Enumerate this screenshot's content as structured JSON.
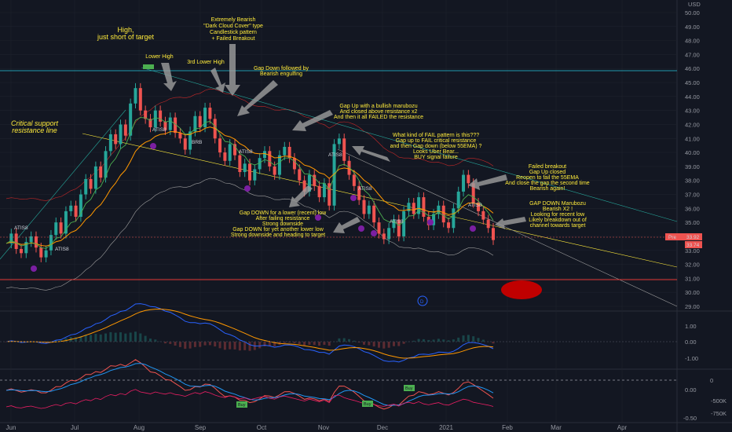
{
  "currency": "USD",
  "price_axis": {
    "ticks": [
      "50.00",
      "49.00",
      "48.00",
      "47.00",
      "46.00",
      "45.00",
      "44.00",
      "43.00",
      "42.00",
      "41.00",
      "40.00",
      "39.00",
      "38.00",
      "37.00",
      "36.00",
      "35.00",
      "34.00",
      "33.00",
      "32.00",
      "31.00",
      "30.00",
      "29.00"
    ],
    "pre_label": "Pre",
    "pre_value": "33.92",
    "last_value": "33.74"
  },
  "macd_axis": {
    "ticks": [
      "1.00",
      "0.00",
      "-1.00"
    ]
  },
  "volume_axis": {
    "ticks": [
      "0",
      "0.00",
      "-500K",
      "-750K",
      "-0.50"
    ]
  },
  "time_axis": {
    "labels": [
      "Jun",
      "Jul",
      "Aug",
      "Sep",
      "Oct",
      "Nov",
      "Dec",
      "2021",
      "Feb",
      "Mar",
      "Apr"
    ]
  },
  "annotations": {
    "high": "High,",
    "high2": "just short of target",
    "lower_high": "Lower High",
    "third_lower_high": "3rd Lower High",
    "dark_cloud_1": "Extremely Bearish",
    "dark_cloud_2": "\"Dark Cloud Cover\" type",
    "dark_cloud_3": "Candlestick pattern",
    "dark_cloud_4": "+ Failed Breakout",
    "gap_down_1": "Gap Down followed by",
    "gap_down_2": "Bearish engulfing",
    "critical_1": "Critical support",
    "critical_2": "resistance line",
    "gap_up_1": "Gap Up with a bullish marubozu",
    "gap_up_2": "And closed above resistance x2",
    "gap_up_3": "And then it all FAILED the resistance",
    "fail_1": "What kind of FAIL pattern is this???",
    "fail_2": "Gap up to FAIL critical resistance",
    "fail_3": "and then Gap down (below 55EMA) ?",
    "fail_4": "Looks Uber Bear...",
    "fail_5": "BUY signal failure",
    "failed_bo_1": "Failed breakout",
    "failed_bo_2": "Gap Up closed",
    "failed_bo_3": "Reopen to fail the 55EMA",
    "failed_bo_4": "And close the gap the second time",
    "failed_bo_5": "Bearish again!",
    "gd_lower_1": "Gap DOWN for a lower (recent) low",
    "gd_lower_2": "After failing resistance",
    "gd_lower_3": "Strong downside",
    "gd_yet_1": "Gap DOWN for yet another lower low",
    "gd_yet_2": "Strong downside and heading to target",
    "maru_1": "GAP DOWN Marubozu",
    "maru_2": "Bearish X2 !",
    "maru_3": "Looking for recent low",
    "maru_4": "Likely breakdown out of",
    "maru_5": "channel towards target"
  },
  "markers": {
    "atis": "ATIS8",
    "brb": "BRB",
    "buy": "Buy",
    "d": "D"
  },
  "colors": {
    "background": "#131722",
    "up": "#26a69a",
    "down": "#ef5350",
    "annotation": "#ffeb3b",
    "ema_orange": "#ff9800",
    "pre_tag": "#ef5350",
    "target_ellipse": "#c00000"
  },
  "chart_data": {
    "type": "candlestick",
    "ylim": [
      29,
      50.5
    ],
    "x": [
      "Jun",
      "Jul",
      "Aug",
      "Sep",
      "Oct",
      "Nov",
      "Dec",
      "2021",
      "Feb",
      "Mar",
      "Apr"
    ],
    "close_series": [
      33.5,
      34.2,
      33.1,
      32.8,
      33.6,
      34.0,
      33.2,
      32.5,
      33.0,
      34.1,
      35.0,
      34.2,
      35.8,
      36.2,
      35.4,
      37.0,
      38.1,
      37.4,
      39.0,
      38.2,
      40.1,
      41.3,
      40.6,
      42.0,
      41.2,
      43.5,
      44.6,
      43.0,
      42.4,
      41.8,
      43.0,
      42.2,
      41.6,
      42.5,
      41.4,
      41.0,
      40.2,
      41.5,
      42.6,
      41.8,
      43.2,
      42.4,
      41.0,
      40.0,
      39.4,
      40.6,
      39.8,
      38.6,
      39.2,
      38.0,
      38.8,
      39.6,
      40.1,
      39.0,
      38.4,
      39.8,
      40.4,
      39.6,
      38.8,
      38.0,
      37.2,
      38.4,
      37.6,
      36.8,
      37.8,
      36.2,
      40.6,
      41.0,
      39.4,
      38.4,
      37.6,
      36.6,
      35.6,
      36.2,
      35.0,
      34.2,
      33.8,
      34.6,
      35.2,
      34.0,
      35.8,
      36.4,
      35.6,
      36.8,
      35.4,
      34.8,
      35.6,
      36.2,
      35.0,
      34.6,
      36.0,
      37.2,
      38.4,
      37.8,
      36.4,
      35.8,
      35.2,
      34.6,
      33.74
    ]
  }
}
